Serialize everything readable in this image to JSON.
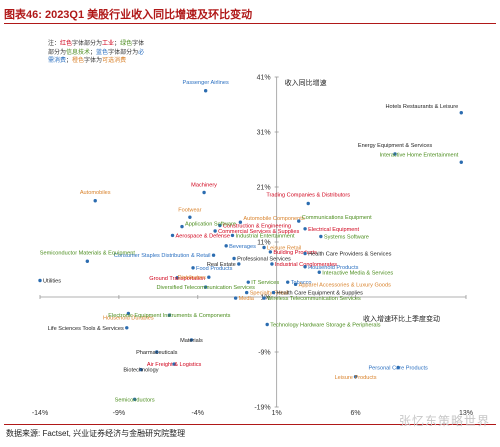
{
  "title": "图表46:  2023Q1 美股行业收入同比增速及环比变动",
  "source": "数据来源: Factset, 兴业证券经济与金融研究院整理",
  "watermark": "张忆东策略世界",
  "note": {
    "prefix": "注：",
    "parts": [
      {
        "text": "红色",
        "color": "#d0021b"
      },
      {
        "text": "字体部分为",
        "color": "#333333"
      },
      {
        "text": "工业",
        "color": "#d0021b"
      },
      {
        "text": "；",
        "color": "#333333"
      },
      {
        "text": "绿色",
        "color": "#4a8c1c"
      },
      {
        "text": "字体部分为",
        "color": "#333333"
      },
      {
        "text": "信息技术",
        "color": "#4a8c1c"
      },
      {
        "text": "；",
        "color": "#333333"
      },
      {
        "text": "蓝色",
        "color": "#2a6fc0"
      },
      {
        "text": "字体部分为",
        "color": "#333333"
      },
      {
        "text": "必需消费",
        "color": "#2a6fc0"
      },
      {
        "text": "；",
        "color": "#333333"
      },
      {
        "text": "橙色",
        "color": "#d9822b"
      },
      {
        "text": "字体为",
        "color": "#333333"
      },
      {
        "text": "可选消费",
        "color": "#d9822b"
      }
    ]
  },
  "colors": {
    "industrial": "#d0021b",
    "tech": "#4a8c1c",
    "staples": "#2a6fc0",
    "discretionary": "#d9822b",
    "other": "#222222",
    "marker": "#2b6cb0",
    "axis": "#999999"
  },
  "chart_data": {
    "type": "scatter",
    "title": "",
    "xlabel": "收入增速环比上季度变动",
    "ylabel": "收入同比增速",
    "xlim": [
      -14,
      13
    ],
    "ylim": [
      -19,
      41
    ],
    "x_ticks": [
      -14,
      -9,
      -4,
      1,
      6,
      13
    ],
    "x_tick_labels": [
      "-14%",
      "-9%",
      "-4%",
      "1%",
      "6%",
      "13%"
    ],
    "y_ticks": [
      41,
      31,
      21,
      11,
      1,
      -9,
      -19
    ],
    "y_tick_labels": [
      "41%",
      "31%",
      "21%",
      "11%",
      "1%",
      "-9%",
      "-19%"
    ],
    "points": [
      {
        "label": "Passenger Airlines",
        "x": -3.5,
        "y": 38.5,
        "group": "staples",
        "anchor": "middle",
        "dy": -7
      },
      {
        "label": "Hotels Restaurants & Leisure",
        "x": 12.7,
        "y": 34.5,
        "group": "other",
        "anchor": "end",
        "dy": -5
      },
      {
        "label": "Energy Equipment & Services",
        "x": 8.5,
        "y": 27.0,
        "group": "other",
        "anchor": "middle",
        "dy": -7
      },
      {
        "label": "Interactive Home Entertainment",
        "x": 12.7,
        "y": 25.5,
        "group": "tech",
        "anchor": "end",
        "dy": -6
      },
      {
        "label": "Machinery",
        "x": -3.6,
        "y": 20.0,
        "group": "industrial",
        "anchor": "middle",
        "dy": -6
      },
      {
        "label": "Automobiles",
        "x": -10.5,
        "y": 18.5,
        "group": "discretionary",
        "anchor": "middle",
        "dy": -7
      },
      {
        "label": "Trading Companies & Distributors",
        "x": 3.0,
        "y": 18.0,
        "group": "industrial",
        "anchor": "middle",
        "dy": -7
      },
      {
        "label": "Footwear",
        "x": -4.5,
        "y": 15.5,
        "group": "discretionary",
        "anchor": "middle",
        "dy": -6
      },
      {
        "label": "Automobile Components",
        "x": -1.3,
        "y": 14.6,
        "group": "discretionary",
        "anchor": "start",
        "dy": -2
      },
      {
        "label": "Communications Equipment",
        "x": 2.4,
        "y": 14.8,
        "group": "tech",
        "anchor": "start",
        "dy": -2
      },
      {
        "label": "Construction & Engineering",
        "x": -2.6,
        "y": 14.0,
        "group": "industrial",
        "anchor": "start",
        "dy": 0
      },
      {
        "label": "Application Software",
        "x": -5.0,
        "y": 13.8,
        "group": "tech",
        "anchor": "start",
        "dy": -1
      },
      {
        "label": "Electrical Equipment",
        "x": 2.8,
        "y": 13.4,
        "group": "industrial",
        "anchor": "start",
        "dy": 0
      },
      {
        "label": "Commercial Services & Supplies",
        "x": -2.9,
        "y": 13.0,
        "group": "industrial",
        "anchor": "start",
        "dy": 0
      },
      {
        "label": "Aerospace & Defense",
        "x": -5.6,
        "y": 12.2,
        "group": "industrial",
        "anchor": "start",
        "dy": 0
      },
      {
        "label": "Industrial Entertainment",
        "x": -1.8,
        "y": 12.2,
        "group": "tech",
        "anchor": "start",
        "dy": 0
      },
      {
        "label": "Systems Software",
        "x": 3.8,
        "y": 12.0,
        "group": "tech",
        "anchor": "start",
        "dy": 0
      },
      {
        "label": "Beverages",
        "x": -2.2,
        "y": 10.3,
        "group": "staples",
        "anchor": "start",
        "dy": 0
      },
      {
        "label": "Leisure Retail",
        "x": 0.2,
        "y": 10.0,
        "group": "discretionary",
        "anchor": "start",
        "dy": 0
      },
      {
        "label": "Consumer Staples Distribution & Retail",
        "x": -3.0,
        "y": 8.6,
        "group": "staples",
        "anchor": "end",
        "dy": 0
      },
      {
        "label": "Building Products",
        "x": 0.6,
        "y": 9.2,
        "group": "industrial",
        "anchor": "start",
        "dy": 0
      },
      {
        "label": "Health Care Providers & Services",
        "x": 2.8,
        "y": 8.9,
        "group": "other",
        "anchor": "start",
        "dy": 0
      },
      {
        "label": "Professional Services",
        "x": -1.7,
        "y": 8.0,
        "group": "other",
        "anchor": "start",
        "dy": 0
      },
      {
        "label": "Real Estate",
        "x": -1.4,
        "y": 7.0,
        "group": "other",
        "anchor": "end",
        "dy": 0
      },
      {
        "label": "Industrial Conglomerates",
        "x": 0.7,
        "y": 7.0,
        "group": "industrial",
        "anchor": "start",
        "dy": 0
      },
      {
        "label": "Household Products",
        "x": 2.8,
        "y": 6.5,
        "group": "staples",
        "anchor": "start",
        "dy": 0
      },
      {
        "label": "Food Products",
        "x": -4.3,
        "y": 6.3,
        "group": "staples",
        "anchor": "start",
        "dy": 0
      },
      {
        "label": "Interactive Media & Services",
        "x": 3.7,
        "y": 5.5,
        "group": "tech",
        "anchor": "start",
        "dy": 0
      },
      {
        "label": "Ground Transportation",
        "x": -5.3,
        "y": 4.5,
        "group": "industrial",
        "anchor": "middle",
        "dy": 0
      },
      {
        "label": "Distributors",
        "x": -3.3,
        "y": 4.6,
        "group": "discretionary",
        "anchor": "end",
        "dy": 0
      },
      {
        "label": "IT Services",
        "x": -0.8,
        "y": 3.7,
        "group": "tech",
        "anchor": "start",
        "dy": 0
      },
      {
        "label": "Tobacco",
        "x": 1.7,
        "y": 3.7,
        "group": "staples",
        "anchor": "start",
        "dy": 0
      },
      {
        "label": "Apparel Accessories & Luxury Goods",
        "x": 2.2,
        "y": 3.3,
        "group": "discretionary",
        "anchor": "start",
        "dy": 0
      },
      {
        "label": "Diversified Telecommunication Services",
        "x": -3.5,
        "y": 2.8,
        "group": "tech",
        "anchor": "middle",
        "dy": 0
      },
      {
        "label": "Specialty Retail",
        "x": -0.9,
        "y": 1.8,
        "group": "discretionary",
        "anchor": "start",
        "dy": 0
      },
      {
        "label": "Health Care Equipment & Supplies",
        "x": 0.8,
        "y": 1.8,
        "group": "other",
        "anchor": "start",
        "dy": 0
      },
      {
        "label": "Wireless Telecommunication Services",
        "x": 0.2,
        "y": 0.8,
        "group": "tech",
        "anchor": "start",
        "dy": 0
      },
      {
        "label": "Media",
        "x": -1.6,
        "y": 0.8,
        "group": "discretionary",
        "anchor": "start",
        "dy": 0
      },
      {
        "label": "Semiconductor Materials & Equipment",
        "x": -11.0,
        "y": 7.5,
        "group": "tech",
        "anchor": "middle",
        "dy": -7
      },
      {
        "label": "Utilities",
        "x": -14.0,
        "y": 4.0,
        "group": "other",
        "anchor": "start",
        "dy": 0
      },
      {
        "label": "Household Durables",
        "x": -8.4,
        "y": -2.0,
        "group": "discretionary",
        "anchor": "middle",
        "dy": 6
      },
      {
        "label": "Electronic Equipment Instruments & Components",
        "x": -5.8,
        "y": -2.3,
        "group": "tech",
        "anchor": "middle",
        "dy": 0
      },
      {
        "label": "Technology Hardware Storage & Peripherals",
        "x": 0.4,
        "y": -4.0,
        "group": "tech",
        "anchor": "start",
        "dy": 0
      },
      {
        "label": "Life Sciences Tools & Services",
        "x": -8.5,
        "y": -4.6,
        "group": "other",
        "anchor": "end",
        "dy": 0
      },
      {
        "label": "Materials",
        "x": -4.4,
        "y": -6.8,
        "group": "other",
        "anchor": "middle",
        "dy": 0
      },
      {
        "label": "Pharmaceuticals",
        "x": -6.6,
        "y": -9.0,
        "group": "other",
        "anchor": "middle",
        "dy": 0
      },
      {
        "label": "Air Freight & Logistics",
        "x": -5.5,
        "y": -11.2,
        "group": "industrial",
        "anchor": "middle",
        "dy": 0
      },
      {
        "label": "Biotechnology",
        "x": -7.6,
        "y": -12.2,
        "group": "other",
        "anchor": "middle",
        "dy": 0
      },
      {
        "label": "Personal Care Products",
        "x": 8.7,
        "y": -11.8,
        "group": "staples",
        "anchor": "middle",
        "dy": 0
      },
      {
        "label": "Leisure Products",
        "x": 6.0,
        "y": -13.5,
        "group": "discretionary",
        "anchor": "middle",
        "dy": 0
      },
      {
        "label": "Semiconductors",
        "x": -8.0,
        "y": -17.6,
        "group": "tech",
        "anchor": "middle",
        "dy": 0
      }
    ]
  }
}
